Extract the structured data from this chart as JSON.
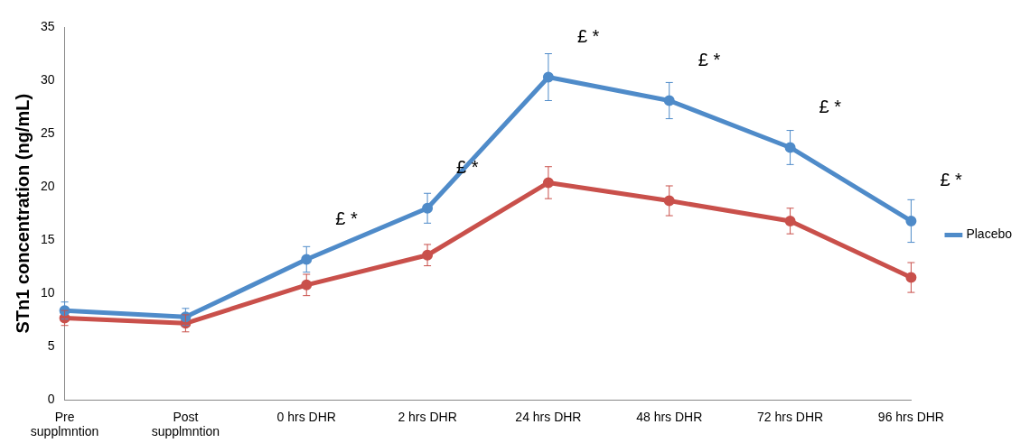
{
  "chart_data": {
    "type": "line",
    "ylabel": "STn1 concentration (ng/mL)",
    "categories": [
      "Pre supplmntion",
      "Post supplmntion",
      "0 hrs DHR",
      "2 hrs DHR",
      "24 hrs DHR",
      "48 hrs DHR",
      "72 hrs DHR",
      "96 hrs DHR"
    ],
    "series": [
      {
        "name": "Placebo",
        "color": "#4f8bc9",
        "values": [
          8.4,
          7.8,
          13.2,
          18.0,
          30.3,
          28.1,
          23.7,
          16.8
        ],
        "errors": [
          0.8,
          0.8,
          1.2,
          1.4,
          2.2,
          1.7,
          1.6,
          2.0
        ]
      },
      {
        "color": "#c9504b",
        "values": [
          7.7,
          7.2,
          10.8,
          13.6,
          20.4,
          18.7,
          16.8,
          11.5
        ],
        "errors": [
          0.7,
          0.8,
          1.0,
          1.0,
          1.5,
          1.4,
          1.2,
          1.4
        ]
      }
    ],
    "ylim": [
      0,
      35
    ],
    "yticks": [
      0,
      5,
      10,
      15,
      20,
      25,
      30,
      35
    ],
    "grid": false,
    "legend": "right",
    "marker": "circle",
    "line_style": "solid",
    "annotations": [
      {
        "text": "£ *",
        "x": "0 hrs DHR",
        "y": 13.2
      },
      {
        "text": "£ *",
        "x": "2 hrs DHR",
        "y": 18.0
      },
      {
        "text": "£ *",
        "x": "24 hrs DHR",
        "y": 30.3
      },
      {
        "text": "£ *",
        "x": "48 hrs DHR",
        "y": 28.1
      },
      {
        "text": "£ *",
        "x": "72 hrs DHR",
        "y": 23.7
      },
      {
        "text": "£ *",
        "x": "96 hrs DHR",
        "y": 16.8
      }
    ]
  }
}
